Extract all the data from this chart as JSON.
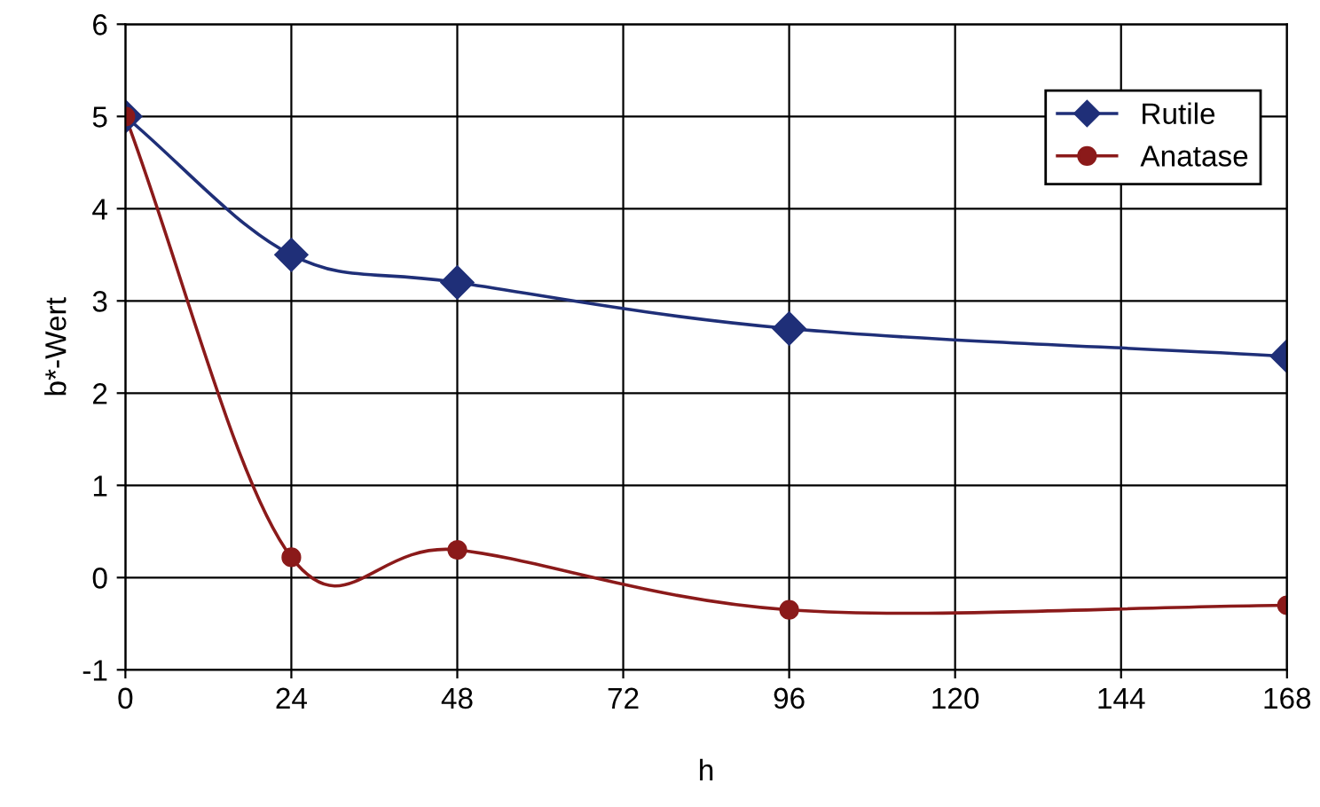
{
  "chart_data": {
    "type": "line",
    "xlabel": "h",
    "ylabel": "b*-Wert",
    "x": [
      0,
      24,
      48,
      96,
      168
    ],
    "series": [
      {
        "name": "Rutile",
        "color": "#1f2f78",
        "values": [
          5,
          3.5,
          3.2,
          2.7,
          2.4
        ],
        "marker": "diamond"
      },
      {
        "name": "Anatase",
        "color": "#8b1a1a",
        "values": [
          5,
          0.22,
          0.3,
          -0.35,
          -0.3
        ],
        "marker": "circle"
      }
    ],
    "xlim": [
      0,
      168
    ],
    "xticks": [
      0,
      24,
      48,
      72,
      96,
      120,
      144,
      168
    ],
    "ylim": [
      -1,
      6
    ],
    "yticks": [
      -1,
      0,
      1,
      2,
      3,
      4,
      5,
      6
    ],
    "grid": true,
    "legend": "top right",
    "line_style": "solid"
  }
}
